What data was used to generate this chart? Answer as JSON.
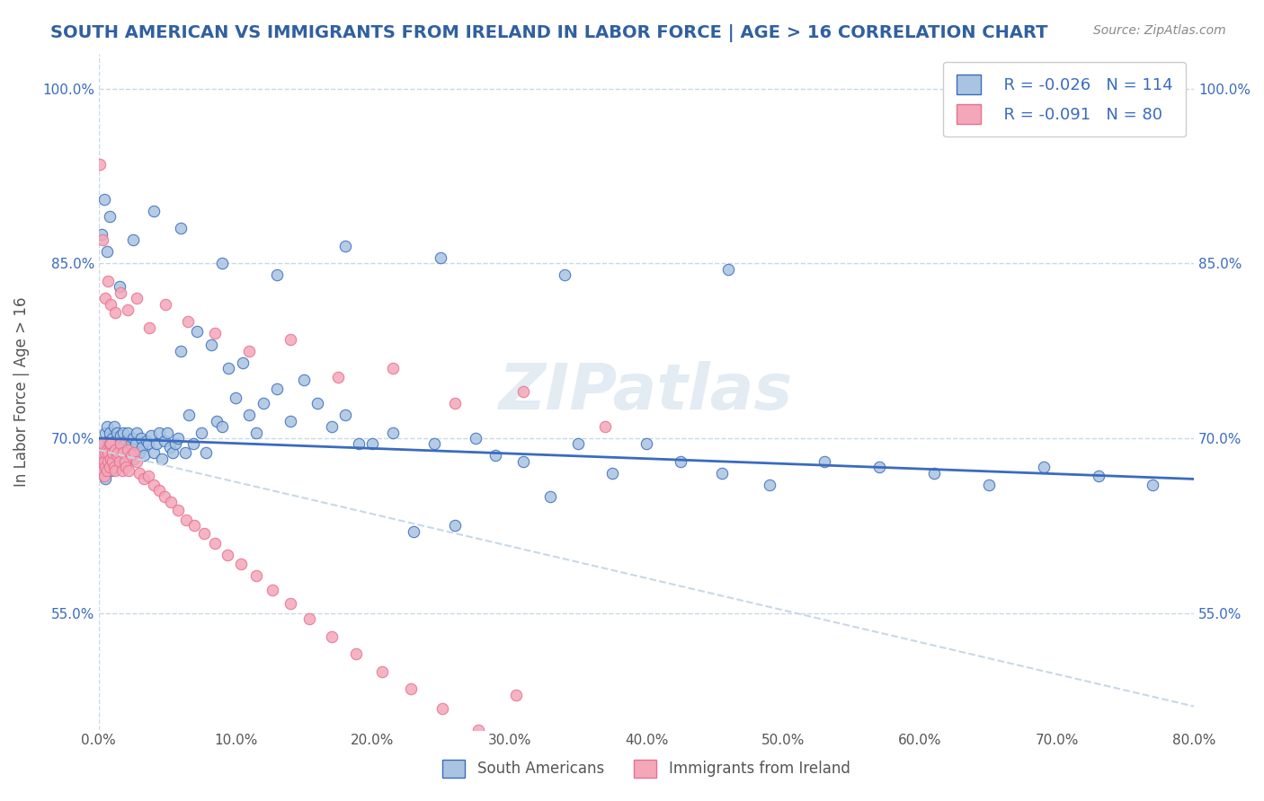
{
  "title": "SOUTH AMERICAN VS IMMIGRANTS FROM IRELAND IN LABOR FORCE | AGE > 16 CORRELATION CHART",
  "source": "Source: ZipAtlas.com",
  "xlabel": "",
  "ylabel": "In Labor Force | Age > 16",
  "xlim": [
    0.0,
    0.8
  ],
  "ylim": [
    0.45,
    1.03
  ],
  "xticks": [
    0.0,
    0.1,
    0.2,
    0.3,
    0.4,
    0.5,
    0.6,
    0.7,
    0.8
  ],
  "xticklabels": [
    "0.0%",
    "10.0%",
    "20.0%",
    "30.0%",
    "40.0%",
    "50.0%",
    "60.0%",
    "70.0%",
    "80.0%"
  ],
  "yticks": [
    0.55,
    0.7,
    0.85,
    1.0
  ],
  "yticklabels": [
    "55.0%",
    "70.0%",
    "85.0%",
    "100.0%"
  ],
  "right_ytick_positions": [
    0.55,
    0.7,
    0.85,
    1.0
  ],
  "right_yticklabels": [
    "55.0%",
    "70.0%",
    "85.0%",
    "100.0%"
  ],
  "legend_r1": "R = -0.026",
  "legend_n1": "N = 114",
  "legend_r2": "R = -0.091",
  "legend_n2": "N = 80",
  "blue_color": "#a8c4e0",
  "pink_color": "#f4a7b9",
  "blue_line_color": "#3a6bbf",
  "pink_line_color": "#e87090",
  "watermark": "ZIPatlas",
  "background_color": "#ffffff",
  "grid_color": "#c8d8e8",
  "title_color": "#3060a0",
  "legend_label1": "South Americans",
  "legend_label2": "Immigrants from Ireland",
  "blue_scatter_x": [
    0.002,
    0.003,
    0.003,
    0.004,
    0.005,
    0.005,
    0.006,
    0.006,
    0.007,
    0.007,
    0.008,
    0.008,
    0.009,
    0.009,
    0.01,
    0.01,
    0.011,
    0.011,
    0.012,
    0.012,
    0.013,
    0.013,
    0.014,
    0.015,
    0.016,
    0.016,
    0.017,
    0.018,
    0.019,
    0.02,
    0.021,
    0.022,
    0.023,
    0.024,
    0.025,
    0.026,
    0.027,
    0.028,
    0.03,
    0.031,
    0.032,
    0.033,
    0.035,
    0.036,
    0.038,
    0.04,
    0.042,
    0.044,
    0.046,
    0.048,
    0.05,
    0.052,
    0.054,
    0.056,
    0.058,
    0.06,
    0.063,
    0.066,
    0.069,
    0.072,
    0.075,
    0.078,
    0.082,
    0.086,
    0.09,
    0.095,
    0.1,
    0.105,
    0.11,
    0.115,
    0.12,
    0.13,
    0.14,
    0.15,
    0.16,
    0.17,
    0.18,
    0.19,
    0.2,
    0.215,
    0.23,
    0.245,
    0.26,
    0.275,
    0.29,
    0.31,
    0.33,
    0.35,
    0.375,
    0.4,
    0.425,
    0.455,
    0.49,
    0.53,
    0.57,
    0.61,
    0.65,
    0.69,
    0.73,
    0.77,
    0.002,
    0.004,
    0.006,
    0.008,
    0.015,
    0.025,
    0.04,
    0.06,
    0.09,
    0.13,
    0.18,
    0.25,
    0.34,
    0.46
  ],
  "blue_scatter_y": [
    0.688,
    0.672,
    0.695,
    0.68,
    0.705,
    0.665,
    0.692,
    0.71,
    0.698,
    0.675,
    0.705,
    0.688,
    0.695,
    0.672,
    0.7,
    0.685,
    0.71,
    0.692,
    0.698,
    0.675,
    0.705,
    0.688,
    0.68,
    0.695,
    0.702,
    0.678,
    0.692,
    0.705,
    0.688,
    0.698,
    0.705,
    0.692,
    0.688,
    0.695,
    0.7,
    0.682,
    0.695,
    0.705,
    0.688,
    0.7,
    0.692,
    0.685,
    0.698,
    0.695,
    0.702,
    0.688,
    0.695,
    0.705,
    0.682,
    0.698,
    0.705,
    0.692,
    0.688,
    0.695,
    0.7,
    0.775,
    0.688,
    0.72,
    0.695,
    0.792,
    0.705,
    0.688,
    0.78,
    0.715,
    0.71,
    0.76,
    0.735,
    0.765,
    0.72,
    0.705,
    0.73,
    0.742,
    0.715,
    0.75,
    0.73,
    0.71,
    0.72,
    0.695,
    0.695,
    0.705,
    0.62,
    0.695,
    0.625,
    0.7,
    0.685,
    0.68,
    0.65,
    0.695,
    0.67,
    0.695,
    0.68,
    0.67,
    0.66,
    0.68,
    0.675,
    0.67,
    0.66,
    0.675,
    0.668,
    0.66,
    0.875,
    0.905,
    0.86,
    0.89,
    0.83,
    0.87,
    0.895,
    0.88,
    0.85,
    0.84,
    0.865,
    0.855,
    0.84,
    0.845
  ],
  "pink_scatter_x": [
    0.001,
    0.002,
    0.002,
    0.003,
    0.003,
    0.004,
    0.004,
    0.005,
    0.005,
    0.006,
    0.006,
    0.007,
    0.007,
    0.008,
    0.008,
    0.009,
    0.009,
    0.01,
    0.01,
    0.011,
    0.012,
    0.012,
    0.013,
    0.014,
    0.015,
    0.016,
    0.017,
    0.018,
    0.019,
    0.02,
    0.021,
    0.022,
    0.024,
    0.026,
    0.028,
    0.03,
    0.033,
    0.036,
    0.04,
    0.044,
    0.048,
    0.053,
    0.058,
    0.064,
    0.07,
    0.077,
    0.085,
    0.094,
    0.104,
    0.115,
    0.127,
    0.14,
    0.154,
    0.17,
    0.188,
    0.207,
    0.228,
    0.251,
    0.277,
    0.305,
    0.001,
    0.003,
    0.005,
    0.007,
    0.009,
    0.012,
    0.016,
    0.021,
    0.028,
    0.037,
    0.049,
    0.065,
    0.085,
    0.11,
    0.14,
    0.175,
    0.215,
    0.26,
    0.31,
    0.37
  ],
  "pink_scatter_y": [
    0.67,
    0.68,
    0.688,
    0.672,
    0.695,
    0.668,
    0.68,
    0.688,
    0.675,
    0.69,
    0.672,
    0.688,
    0.68,
    0.695,
    0.675,
    0.682,
    0.695,
    0.68,
    0.688,
    0.675,
    0.69,
    0.672,
    0.685,
    0.688,
    0.68,
    0.695,
    0.672,
    0.688,
    0.68,
    0.675,
    0.69,
    0.672,
    0.685,
    0.688,
    0.68,
    0.67,
    0.665,
    0.668,
    0.66,
    0.655,
    0.65,
    0.645,
    0.638,
    0.63,
    0.625,
    0.618,
    0.61,
    0.6,
    0.592,
    0.582,
    0.57,
    0.558,
    0.545,
    0.53,
    0.515,
    0.5,
    0.485,
    0.468,
    0.45,
    0.48,
    0.935,
    0.87,
    0.82,
    0.835,
    0.815,
    0.808,
    0.825,
    0.81,
    0.82,
    0.795,
    0.815,
    0.8,
    0.79,
    0.775,
    0.785,
    0.752,
    0.76,
    0.73,
    0.74,
    0.71
  ],
  "blue_trend_x": [
    0.0,
    0.8
  ],
  "blue_trend_y": [
    0.7,
    0.665
  ],
  "pink_trend_x": [
    0.0,
    0.8
  ],
  "pink_trend_y": [
    0.69,
    0.47
  ]
}
